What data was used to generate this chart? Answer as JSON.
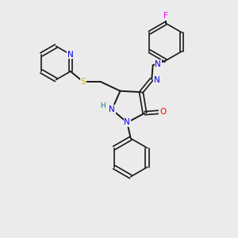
{
  "background_color": "#ebebeb",
  "bond_color": "#1a1a1a",
  "atom_colors": {
    "N": "#0000ee",
    "O": "#ff0000",
    "S": "#ccbb00",
    "F": "#ee00ee",
    "H": "#008080",
    "C": "#1a1a1a"
  },
  "figsize": [
    3.0,
    3.0
  ],
  "dpi": 100
}
